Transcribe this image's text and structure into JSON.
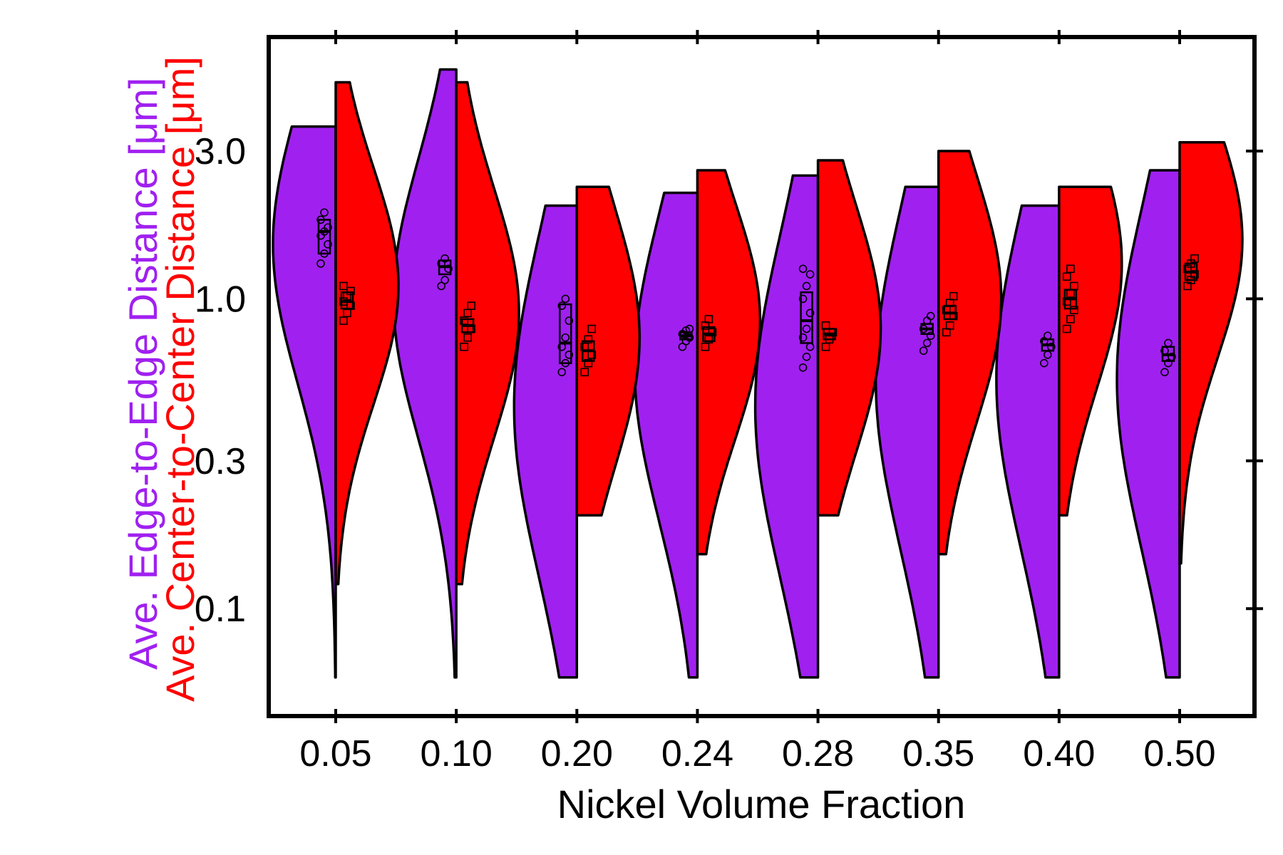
{
  "chart_data": {
    "type": "violin",
    "title": "",
    "xlabel": "Nickel Volume Fraction",
    "ylabel_series": [
      {
        "text": "Ave. Edge-to-Edge Distance [μm]",
        "color": "#a020f0"
      },
      {
        "text": "Ave. Center-to-Center Distance [μm]",
        "color": "#ff0000"
      }
    ],
    "y_scale": "log",
    "ylim": [
      0.045,
      7.0
    ],
    "y_ticks": [
      {
        "value": 0.1,
        "label": "0.1"
      },
      {
        "value": 0.3,
        "label": "0.3"
      },
      {
        "value": 1.0,
        "label": "1.0"
      },
      {
        "value": 3.0,
        "label": "3.0"
      }
    ],
    "categories": [
      "0.05",
      "0.10",
      "0.20",
      "0.24",
      "0.28",
      "0.35",
      "0.40",
      "0.50"
    ],
    "series": [
      {
        "side": "left",
        "color": "#a020f0",
        "groups": [
          {
            "range": [
              0.06,
              3.6
            ],
            "mode": 1.5,
            "spread": 0.45,
            "box": [
              1.4,
              1.65,
              1.8
            ],
            "points": [
              1.3,
              1.4,
              1.5,
              1.6,
              1.65,
              1.7,
              1.8,
              1.9
            ]
          },
          {
            "range": [
              0.06,
              5.5
            ],
            "mode": 1.0,
            "spread": 0.45,
            "box": [
              1.2,
              1.27,
              1.33
            ],
            "points": [
              1.1,
              1.15,
              1.25,
              1.3,
              1.35
            ]
          },
          {
            "range": [
              0.06,
              2.0
            ],
            "mode": 0.45,
            "spread": 0.55,
            "box": [
              0.62,
              0.72,
              0.96
            ],
            "points": [
              0.58,
              0.62,
              0.66,
              0.7,
              0.75,
              0.85,
              0.95,
              1.0
            ]
          },
          {
            "range": [
              0.06,
              2.2
            ],
            "mode": 0.6,
            "spread": 0.5,
            "box": [
              0.74,
              0.76,
              0.78
            ],
            "points": [
              0.7,
              0.73,
              0.75,
              0.77,
              0.79,
              0.8
            ]
          },
          {
            "range": [
              0.06,
              2.5
            ],
            "mode": 0.45,
            "spread": 0.55,
            "box": [
              0.72,
              0.85,
              1.05
            ],
            "points": [
              0.6,
              0.65,
              0.7,
              0.75,
              0.8,
              0.9,
              1.0,
              1.1,
              1.2,
              1.25
            ]
          },
          {
            "range": [
              0.06,
              2.3
            ],
            "mode": 0.55,
            "spread": 0.55,
            "box": [
              0.77,
              0.8,
              0.83
            ],
            "points": [
              0.68,
              0.72,
              0.76,
              0.8,
              0.85,
              0.88
            ]
          },
          {
            "range": [
              0.06,
              2.0
            ],
            "mode": 0.55,
            "spread": 0.55,
            "box": [
              0.68,
              0.71,
              0.74
            ],
            "points": [
              0.62,
              0.66,
              0.7,
              0.73,
              0.76
            ]
          },
          {
            "range": [
              0.06,
              2.6
            ],
            "mode": 0.55,
            "spread": 0.55,
            "box": [
              0.63,
              0.66,
              0.7
            ],
            "points": [
              0.58,
              0.62,
              0.65,
              0.68,
              0.72
            ]
          }
        ]
      },
      {
        "side": "right",
        "color": "#ff0000",
        "groups": [
          {
            "range": [
              0.12,
              5.0
            ],
            "mode": 1.1,
            "spread": 0.38,
            "box": [
              0.93,
              0.98,
              1.05
            ],
            "points": [
              0.85,
              0.9,
              0.95,
              0.98,
              1.02,
              1.06,
              1.1
            ]
          },
          {
            "range": [
              0.12,
              5.0
            ],
            "mode": 0.9,
            "spread": 0.4,
            "box": [
              0.78,
              0.82,
              0.86
            ],
            "points": [
              0.7,
              0.75,
              0.8,
              0.85,
              0.9,
              0.95
            ]
          },
          {
            "range": [
              0.2,
              2.3
            ],
            "mode": 0.75,
            "spread": 0.42,
            "box": [
              0.63,
              0.68,
              0.73
            ],
            "points": [
              0.58,
              0.62,
              0.66,
              0.7,
              0.74,
              0.8
            ]
          },
          {
            "range": [
              0.15,
              2.6
            ],
            "mode": 0.85,
            "spread": 0.38,
            "box": [
              0.73,
              0.77,
              0.81
            ],
            "points": [
              0.7,
              0.74,
              0.78,
              0.82,
              0.86
            ]
          },
          {
            "range": [
              0.2,
              2.8
            ],
            "mode": 0.8,
            "spread": 0.4,
            "box": [
              0.74,
              0.77,
              0.8
            ],
            "points": [
              0.7,
              0.74,
              0.78,
              0.82
            ]
          },
          {
            "range": [
              0.15,
              3.0
            ],
            "mode": 1.0,
            "spread": 0.4,
            "box": [
              0.86,
              0.9,
              0.95
            ],
            "points": [
              0.78,
              0.82,
              0.88,
              0.92,
              0.97,
              1.02
            ]
          },
          {
            "range": [
              0.2,
              2.3
            ],
            "mode": 1.3,
            "spread": 0.4,
            "box": [
              0.93,
              1.0,
              1.07
            ],
            "points": [
              0.8,
              0.86,
              0.92,
              0.98,
              1.04,
              1.1,
              1.18,
              1.25
            ]
          },
          {
            "range": [
              0.14,
              3.2
            ],
            "mode": 1.55,
            "spread": 0.38,
            "box": [
              1.15,
              1.22,
              1.3
            ],
            "points": [
              1.1,
              1.15,
              1.2,
              1.25,
              1.3,
              1.35
            ]
          }
        ]
      }
    ],
    "grid": false,
    "legend": "none"
  }
}
